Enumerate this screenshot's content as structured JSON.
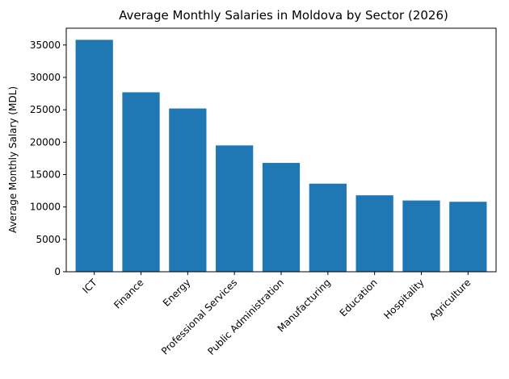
{
  "chart_data": {
    "type": "bar",
    "title": "Average Monthly Salaries in Moldova by Sector (2026)",
    "xlabel": "",
    "ylabel": "Average Monthly Salary (MDL)",
    "categories": [
      "ICT",
      "Finance",
      "Energy",
      "Professional Services",
      "Public Administration",
      "Manufacturing",
      "Education",
      "Hospitality",
      "Agriculture"
    ],
    "values": [
      35800,
      27700,
      25200,
      19500,
      16800,
      13600,
      11800,
      11000,
      10800
    ],
    "ylim": [
      0,
      37590
    ],
    "yticks": [
      0,
      5000,
      10000,
      15000,
      20000,
      25000,
      30000,
      35000
    ],
    "bar_color": "#1f77b4",
    "grid": false
  }
}
